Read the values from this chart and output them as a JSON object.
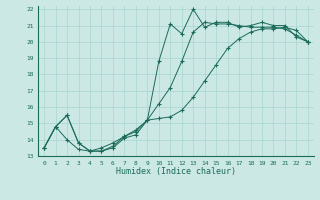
{
  "xlabel": "Humidex (Indice chaleur)",
  "bg_color": "#cce8e5",
  "line_color": "#1a6b5a",
  "grid_color": "#a8d4d0",
  "xlim": [
    -0.5,
    23.5
  ],
  "ylim": [
    13,
    22.2
  ],
  "xticks": [
    0,
    1,
    2,
    3,
    4,
    5,
    6,
    7,
    8,
    9,
    10,
    11,
    12,
    13,
    14,
    15,
    16,
    17,
    18,
    19,
    20,
    21,
    22,
    23
  ],
  "yticks": [
    13,
    14,
    15,
    16,
    17,
    18,
    19,
    20,
    21,
    22
  ],
  "line1_x": [
    0,
    1,
    2,
    3,
    4,
    5,
    6,
    7,
    8,
    9,
    10,
    11,
    12,
    13,
    14,
    15,
    16,
    17,
    18,
    19,
    20,
    21,
    22,
    23
  ],
  "line1_y": [
    13.5,
    14.8,
    15.5,
    13.8,
    13.3,
    13.3,
    13.5,
    14.1,
    14.3,
    15.2,
    18.8,
    21.1,
    20.5,
    22.0,
    20.9,
    21.2,
    21.2,
    20.9,
    21.0,
    21.2,
    21.0,
    21.0,
    20.3,
    20.0
  ],
  "line2_x": [
    0,
    1,
    2,
    3,
    4,
    5,
    6,
    7,
    8,
    9,
    10,
    11,
    12,
    13,
    14,
    15,
    16,
    17,
    18,
    19,
    20,
    21,
    22,
    23
  ],
  "line2_y": [
    13.5,
    14.8,
    14.0,
    13.4,
    13.3,
    13.5,
    13.8,
    14.2,
    14.6,
    15.2,
    16.2,
    17.2,
    18.8,
    20.6,
    21.2,
    21.1,
    21.1,
    21.0,
    20.9,
    20.9,
    20.9,
    20.8,
    20.4,
    20.0
  ],
  "line3_x": [
    0,
    1,
    2,
    3,
    4,
    5,
    6,
    7,
    8,
    9,
    10,
    11,
    12,
    13,
    14,
    15,
    16,
    17,
    18,
    19,
    20,
    21,
    22,
    23
  ],
  "line3_y": [
    13.5,
    14.8,
    15.5,
    13.8,
    13.3,
    13.3,
    13.6,
    14.2,
    14.5,
    15.2,
    15.3,
    15.4,
    15.8,
    16.6,
    17.6,
    18.6,
    19.6,
    20.2,
    20.6,
    20.8,
    20.8,
    20.9,
    20.7,
    20.0
  ]
}
